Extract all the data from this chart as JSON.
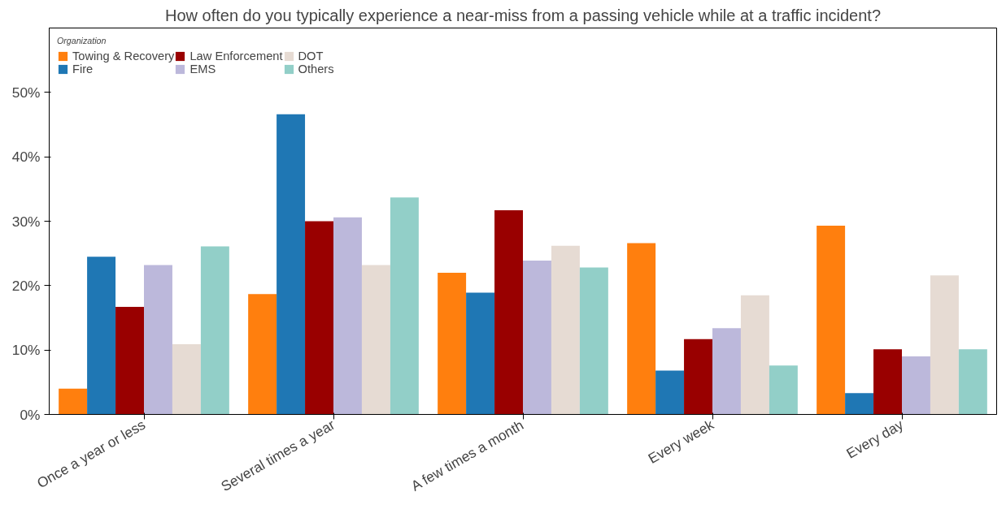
{
  "chart_data": {
    "type": "bar",
    "title": "How often do you typically experience a near-miss from a passing vehicle while at a traffic incident?",
    "categories": [
      "Once a year or less",
      "Several times a year",
      "A few times a month",
      "Every week",
      "Every day"
    ],
    "legend_title": "Organization",
    "legend": "top left",
    "grid": false,
    "ylim": [
      0,
      60
    ],
    "yticks": [
      {
        "value": 0,
        "label": "0%"
      },
      {
        "value": 10,
        "label": "10%"
      },
      {
        "value": 20,
        "label": "20%"
      },
      {
        "value": 30,
        "label": "30%"
      },
      {
        "value": 40,
        "label": "40%"
      },
      {
        "value": 50,
        "label": "50%"
      }
    ],
    "series": [
      {
        "name": "Towing & Recovery",
        "color": "#ff7f0e",
        "values": [
          4.0,
          18.7,
          22.0,
          26.6,
          29.3
        ]
      },
      {
        "name": "Fire",
        "color": "#1f77b4",
        "values": [
          24.5,
          46.6,
          18.9,
          6.8,
          3.3
        ]
      },
      {
        "name": "Law Enforcement",
        "color": "#990000",
        "values": [
          16.7,
          30.0,
          31.7,
          11.7,
          10.1
        ]
      },
      {
        "name": "EMS",
        "color": "#bcb8db",
        "values": [
          23.2,
          30.6,
          23.9,
          13.4,
          9.0
        ]
      },
      {
        "name": "DOT",
        "color": "#e6dbd3",
        "values": [
          10.9,
          23.2,
          26.2,
          18.5,
          21.6
        ]
      },
      {
        "name": "Others",
        "color": "#92cfc8",
        "values": [
          26.1,
          33.7,
          22.8,
          7.6,
          10.1
        ]
      }
    ]
  }
}
